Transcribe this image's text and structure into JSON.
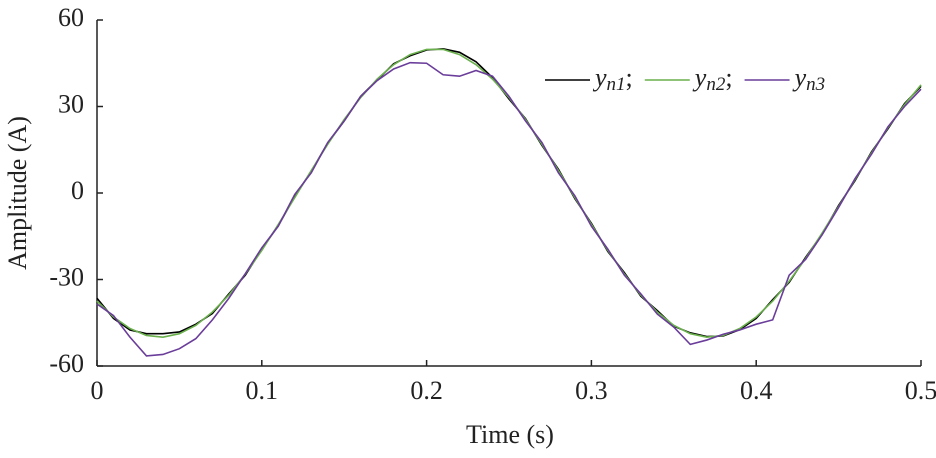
{
  "chart_data": {
    "type": "line",
    "x_label": "Time (s)",
    "y_label": "Amplitude (A)",
    "x": [
      0,
      0.01,
      0.02,
      0.03,
      0.04,
      0.05,
      0.06,
      0.07,
      0.08,
      0.09,
      0.1,
      0.11,
      0.12,
      0.13,
      0.14,
      0.15,
      0.16,
      0.17,
      0.18,
      0.19,
      0.2,
      0.21,
      0.22,
      0.23,
      0.24,
      0.25,
      0.26,
      0.27,
      0.28,
      0.29,
      0.3,
      0.31,
      0.32,
      0.33,
      0.34,
      0.35,
      0.36,
      0.37,
      0.38,
      0.39,
      0.4,
      0.41,
      0.42,
      0.43,
      0.44,
      0.45,
      0.46,
      0.47,
      0.48,
      0.49,
      0.5
    ],
    "series": [
      {
        "name": "yn1;",
        "color": "#000000",
        "values": [
          -36.5,
          -43.5,
          -47.5,
          -48.8,
          -48.8,
          -48.2,
          -45.5,
          -41.8,
          -35.0,
          -28.5,
          -19.5,
          -11.3,
          -1.2,
          7.5,
          17.3,
          25.0,
          33.5,
          39.2,
          44.8,
          47.6,
          49.6,
          50.0,
          48.8,
          45.5,
          40.0,
          32.6,
          25.8,
          16.5,
          8.2,
          -2.0,
          -10.5,
          -20.3,
          -27.6,
          -35.8,
          -40.8,
          -46.2,
          -48.5,
          -49.8,
          -49.6,
          -47.4,
          -43.5,
          -37.0,
          -31.0,
          -22.3,
          -14.3,
          -4.3,
          4.3,
          14.3,
          22.3,
          31.0,
          37.0
        ]
      },
      {
        "name": "yn2;",
        "color": "#6ab04c",
        "values": [
          -37.5,
          -43.0,
          -47.0,
          -49.4,
          -50.0,
          -48.8,
          -45.9,
          -41.3,
          -35.4,
          -28.1,
          -19.9,
          -10.9,
          -1.6,
          7.8,
          16.9,
          25.5,
          33.1,
          39.5,
          44.5,
          48.0,
          49.8,
          49.8,
          48.0,
          44.5,
          39.5,
          33.1,
          25.5,
          16.9,
          7.8,
          -1.6,
          -10.9,
          -19.9,
          -28.1,
          -35.4,
          -41.3,
          -45.9,
          -48.8,
          -50.0,
          -49.4,
          -47.0,
          -43.0,
          -37.5,
          -30.6,
          -22.7,
          -13.9,
          -4.7,
          4.7,
          13.9,
          22.7,
          30.6,
          37.5
        ]
      },
      {
        "name": "yn3",
        "color": "#6a3d9a",
        "values": [
          -38.5,
          -42.5,
          -50.0,
          -56.5,
          -56.0,
          -54.0,
          -50.5,
          -44.0,
          -36.5,
          -28.0,
          -19.0,
          -11.5,
          -0.5,
          7.0,
          17.5,
          25.0,
          33.5,
          39.0,
          43.0,
          45.2,
          45.0,
          41.0,
          40.5,
          42.5,
          40.5,
          33.5,
          25.0,
          17.5,
          7.0,
          -1.0,
          -11.5,
          -19.5,
          -28.5,
          -35.0,
          -42.0,
          -46.5,
          -52.5,
          -51.0,
          -49.0,
          -47.5,
          -45.5,
          -44.0,
          -28.5,
          -23.0,
          -14.5,
          -5.0,
          5.0,
          13.5,
          23.0,
          30.0,
          36.0
        ]
      }
    ],
    "xlim": [
      0,
      0.5
    ],
    "xticks": [
      0,
      0.1,
      0.2,
      0.3,
      0.4,
      0.5
    ],
    "ylim": [
      -60,
      60
    ],
    "yticks": [
      -60,
      -30,
      0,
      30,
      60
    ],
    "grid": false,
    "legend": "upper right"
  }
}
